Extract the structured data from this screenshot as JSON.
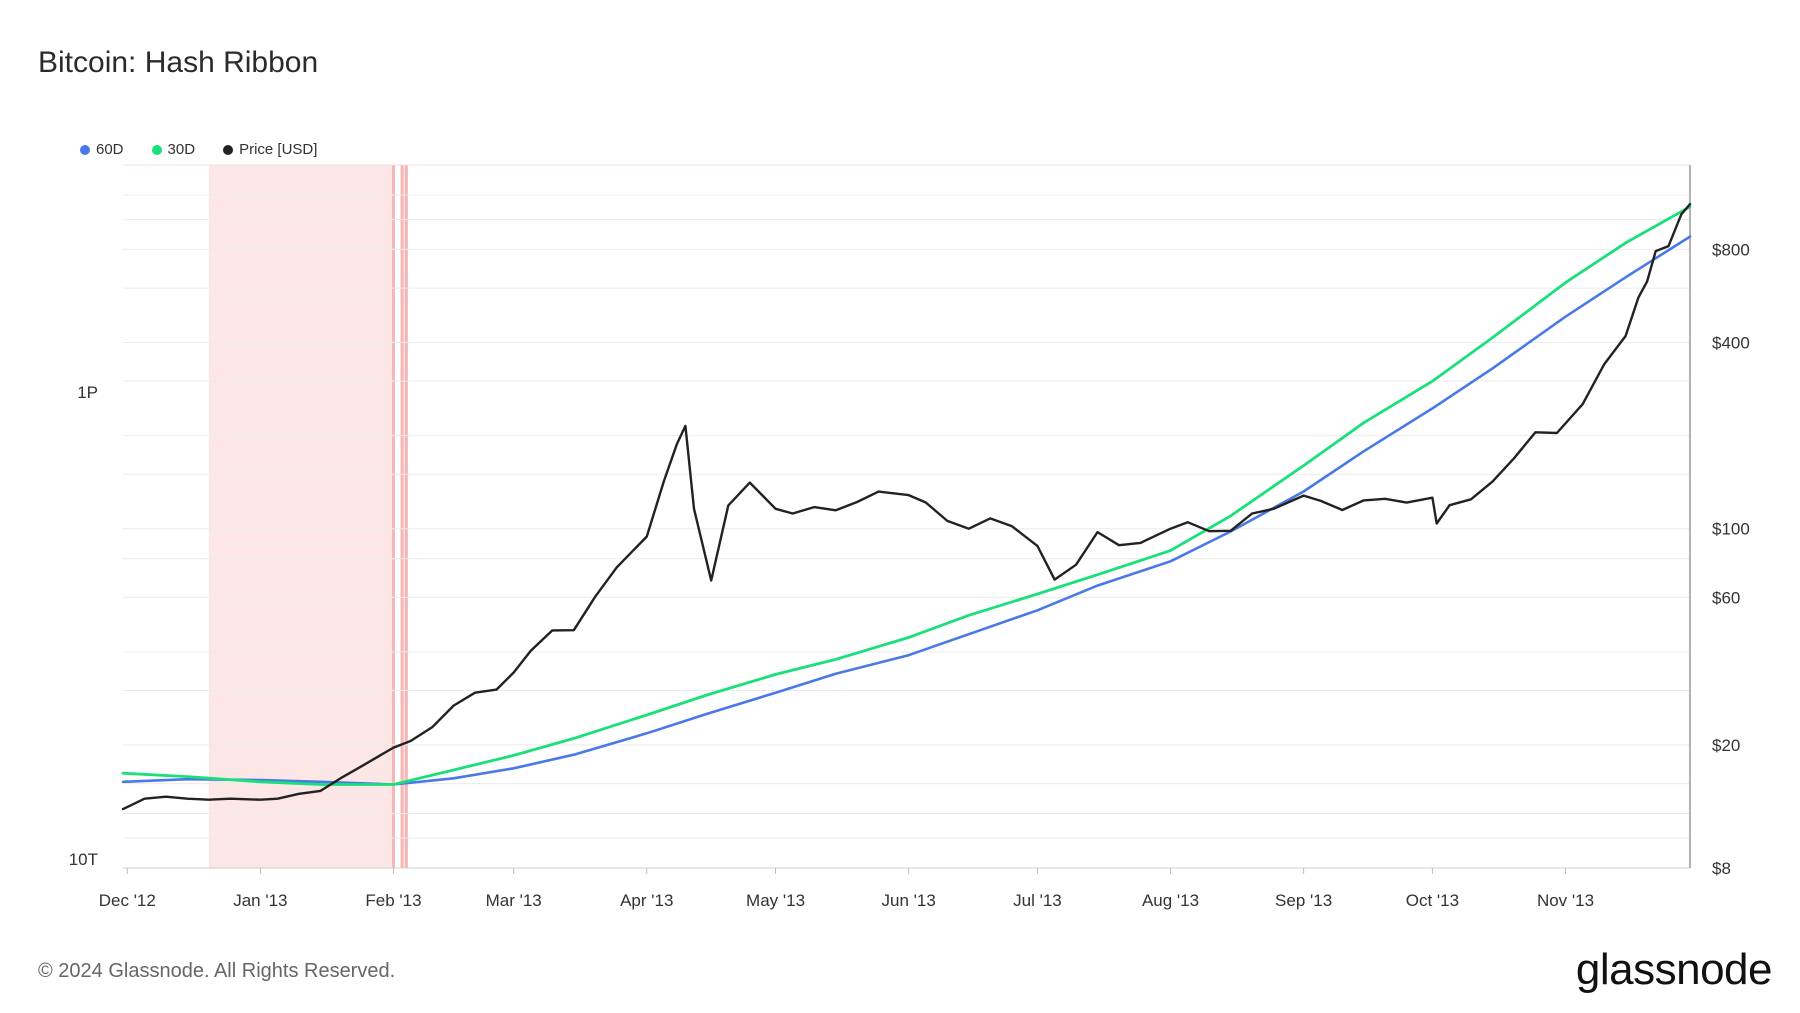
{
  "title": "Bitcoin: Hash Ribbon",
  "footer": "© 2024 Glassnode. All Rights Reserved.",
  "brand": "glassnode",
  "colors": {
    "series_60d": "#4a78e8",
    "series_30d": "#19e07a",
    "price": "#222222",
    "capitulation_band": "#fde6e6",
    "capitulation_line": "#f7b6b6"
  },
  "chart_data": {
    "type": "line",
    "title": "Bitcoin: Hash Ribbon",
    "legend": [
      "60D",
      "30D",
      "Price [USD]"
    ],
    "legend_position": "top-left",
    "grid": true,
    "x_ticks": [
      "Dec '12",
      "Jan '13",
      "Feb '13",
      "Mar '13",
      "Apr '13",
      "May '13",
      "Jun '13",
      "Jul '13",
      "Aug '13",
      "Sep '13",
      "Oct '13",
      "Nov '13"
    ],
    "xlim": [
      "2012-11-30",
      "2013-11-30"
    ],
    "y_left": {
      "label": "",
      "scale": "log",
      "ticks": [
        "10T",
        "1P"
      ]
    },
    "y_right": {
      "label": "",
      "scale": "log",
      "ticks": [
        "$8",
        "$20",
        "$60",
        "$100",
        "$400",
        "$800"
      ],
      "ylim": [
        8,
        1500
      ]
    },
    "capitulation_periods": [
      {
        "start": "2012-12-20",
        "end": "2013-02-01"
      },
      {
        "start": "2013-02-03",
        "end": "2013-02-04"
      }
    ],
    "series": [
      {
        "name": "60D",
        "axis": "left",
        "points": [
          [
            "2012-11-30",
            15.2
          ],
          [
            "2012-12-15",
            15.5
          ],
          [
            "2013-01-01",
            15.4
          ],
          [
            "2013-01-15",
            15.2
          ],
          [
            "2013-02-01",
            14.9
          ],
          [
            "2013-02-15",
            15.6
          ],
          [
            "2013-03-01",
            16.8
          ],
          [
            "2013-03-15",
            18.6
          ],
          [
            "2013-04-01",
            21.8
          ],
          [
            "2013-04-15",
            25.2
          ],
          [
            "2013-05-01",
            29.5
          ],
          [
            "2013-05-15",
            34.0
          ],
          [
            "2013-06-01",
            39.0
          ],
          [
            "2013-06-15",
            45.6
          ],
          [
            "2013-07-01",
            54.5
          ],
          [
            "2013-07-15",
            65.5
          ],
          [
            "2013-08-01",
            78.5
          ],
          [
            "2013-08-15",
            98
          ],
          [
            "2013-09-01",
            132
          ],
          [
            "2013-09-15",
            178
          ],
          [
            "2013-10-01",
            245
          ],
          [
            "2013-10-15",
            330
          ],
          [
            "2013-11-01",
            485
          ],
          [
            "2013-11-15",
            650
          ],
          [
            "2013-11-30",
            880
          ]
        ]
      },
      {
        "name": "30D",
        "axis": "left",
        "points": [
          [
            "2012-11-30",
            16.2
          ],
          [
            "2012-12-15",
            15.8
          ],
          [
            "2013-01-01",
            15.2
          ],
          [
            "2013-01-15",
            14.9
          ],
          [
            "2013-02-01",
            14.9
          ],
          [
            "2013-02-15",
            16.6
          ],
          [
            "2013-03-01",
            18.5
          ],
          [
            "2013-03-15",
            21.0
          ],
          [
            "2013-04-01",
            25.0
          ],
          [
            "2013-04-15",
            29.0
          ],
          [
            "2013-05-01",
            33.8
          ],
          [
            "2013-05-15",
            37.8
          ],
          [
            "2013-06-01",
            44.5
          ],
          [
            "2013-06-15",
            52.5
          ],
          [
            "2013-07-01",
            61.5
          ],
          [
            "2013-07-15",
            71.0
          ],
          [
            "2013-08-01",
            85.0
          ],
          [
            "2013-08-15",
            110
          ],
          [
            "2013-09-01",
            160
          ],
          [
            "2013-09-15",
            220
          ],
          [
            "2013-10-01",
            300
          ],
          [
            "2013-10-15",
            415
          ],
          [
            "2013-11-01",
            625
          ],
          [
            "2013-11-15",
            840
          ],
          [
            "2013-11-30",
            1100
          ]
        ]
      },
      {
        "name": "Price [USD]",
        "axis": "right",
        "points": [
          [
            "2012-11-30",
            12.4
          ],
          [
            "2012-12-05",
            13.4
          ],
          [
            "2012-12-10",
            13.6
          ],
          [
            "2012-12-15",
            13.4
          ],
          [
            "2012-12-20",
            13.3
          ],
          [
            "2012-12-25",
            13.4
          ],
          [
            "2013-01-01",
            13.3
          ],
          [
            "2013-01-05",
            13.4
          ],
          [
            "2013-01-10",
            13.9
          ],
          [
            "2013-01-15",
            14.2
          ],
          [
            "2013-01-20",
            15.7
          ],
          [
            "2013-01-25",
            17.2
          ],
          [
            "2013-02-01",
            19.6
          ],
          [
            "2013-02-05",
            20.6
          ],
          [
            "2013-02-10",
            22.8
          ],
          [
            "2013-02-15",
            26.8
          ],
          [
            "2013-02-20",
            29.5
          ],
          [
            "2013-02-25",
            30.2
          ],
          [
            "2013-03-01",
            34.3
          ],
          [
            "2013-03-05",
            40.3
          ],
          [
            "2013-03-10",
            46.9
          ],
          [
            "2013-03-15",
            47.0
          ],
          [
            "2013-03-20",
            60.3
          ],
          [
            "2013-03-25",
            75.0
          ],
          [
            "2013-04-01",
            94.4
          ],
          [
            "2013-04-05",
            142.6
          ],
          [
            "2013-04-08",
            187.5
          ],
          [
            "2013-04-10",
            215
          ],
          [
            "2013-04-12",
            116
          ],
          [
            "2013-04-16",
            68
          ],
          [
            "2013-04-20",
            119
          ],
          [
            "2013-04-25",
            141
          ],
          [
            "2013-05-01",
            116
          ],
          [
            "2013-05-05",
            112
          ],
          [
            "2013-05-10",
            117.5
          ],
          [
            "2013-05-15",
            114.7
          ],
          [
            "2013-05-20",
            122
          ],
          [
            "2013-05-25",
            131.9
          ],
          [
            "2013-06-01",
            128.5
          ],
          [
            "2013-06-05",
            121.6
          ],
          [
            "2013-06-10",
            106
          ],
          [
            "2013-06-15",
            100
          ],
          [
            "2013-06-20",
            108
          ],
          [
            "2013-06-25",
            102
          ],
          [
            "2013-07-01",
            88
          ],
          [
            "2013-07-05",
            68.5
          ],
          [
            "2013-07-10",
            76.5
          ],
          [
            "2013-07-15",
            97.5
          ],
          [
            "2013-07-20",
            88.5
          ],
          [
            "2013-07-25",
            90
          ],
          [
            "2013-08-01",
            100
          ],
          [
            "2013-08-05",
            105
          ],
          [
            "2013-08-10",
            98.2
          ],
          [
            "2013-08-15",
            98.5
          ],
          [
            "2013-08-20",
            112
          ],
          [
            "2013-08-25",
            116
          ],
          [
            "2013-09-01",
            128
          ],
          [
            "2013-09-05",
            123
          ],
          [
            "2013-09-10",
            115
          ],
          [
            "2013-09-15",
            123.5
          ],
          [
            "2013-09-20",
            125
          ],
          [
            "2013-09-25",
            121.5
          ],
          [
            "2013-10-01",
            126
          ],
          [
            "2013-10-02",
            104
          ],
          [
            "2013-10-05",
            119.2
          ],
          [
            "2013-10-10",
            124.5
          ],
          [
            "2013-10-15",
            142
          ],
          [
            "2013-10-20",
            169
          ],
          [
            "2013-10-25",
            205
          ],
          [
            "2013-10-30",
            204
          ],
          [
            "2013-11-05",
            253
          ],
          [
            "2013-11-10",
            340
          ],
          [
            "2013-11-15",
            420
          ],
          [
            "2013-11-18",
            560
          ],
          [
            "2013-11-20",
            630
          ],
          [
            "2013-11-22",
            790
          ],
          [
            "2013-11-25",
            820
          ],
          [
            "2013-11-28",
            1040
          ],
          [
            "2013-11-30",
            1120
          ]
        ]
      }
    ]
  }
}
